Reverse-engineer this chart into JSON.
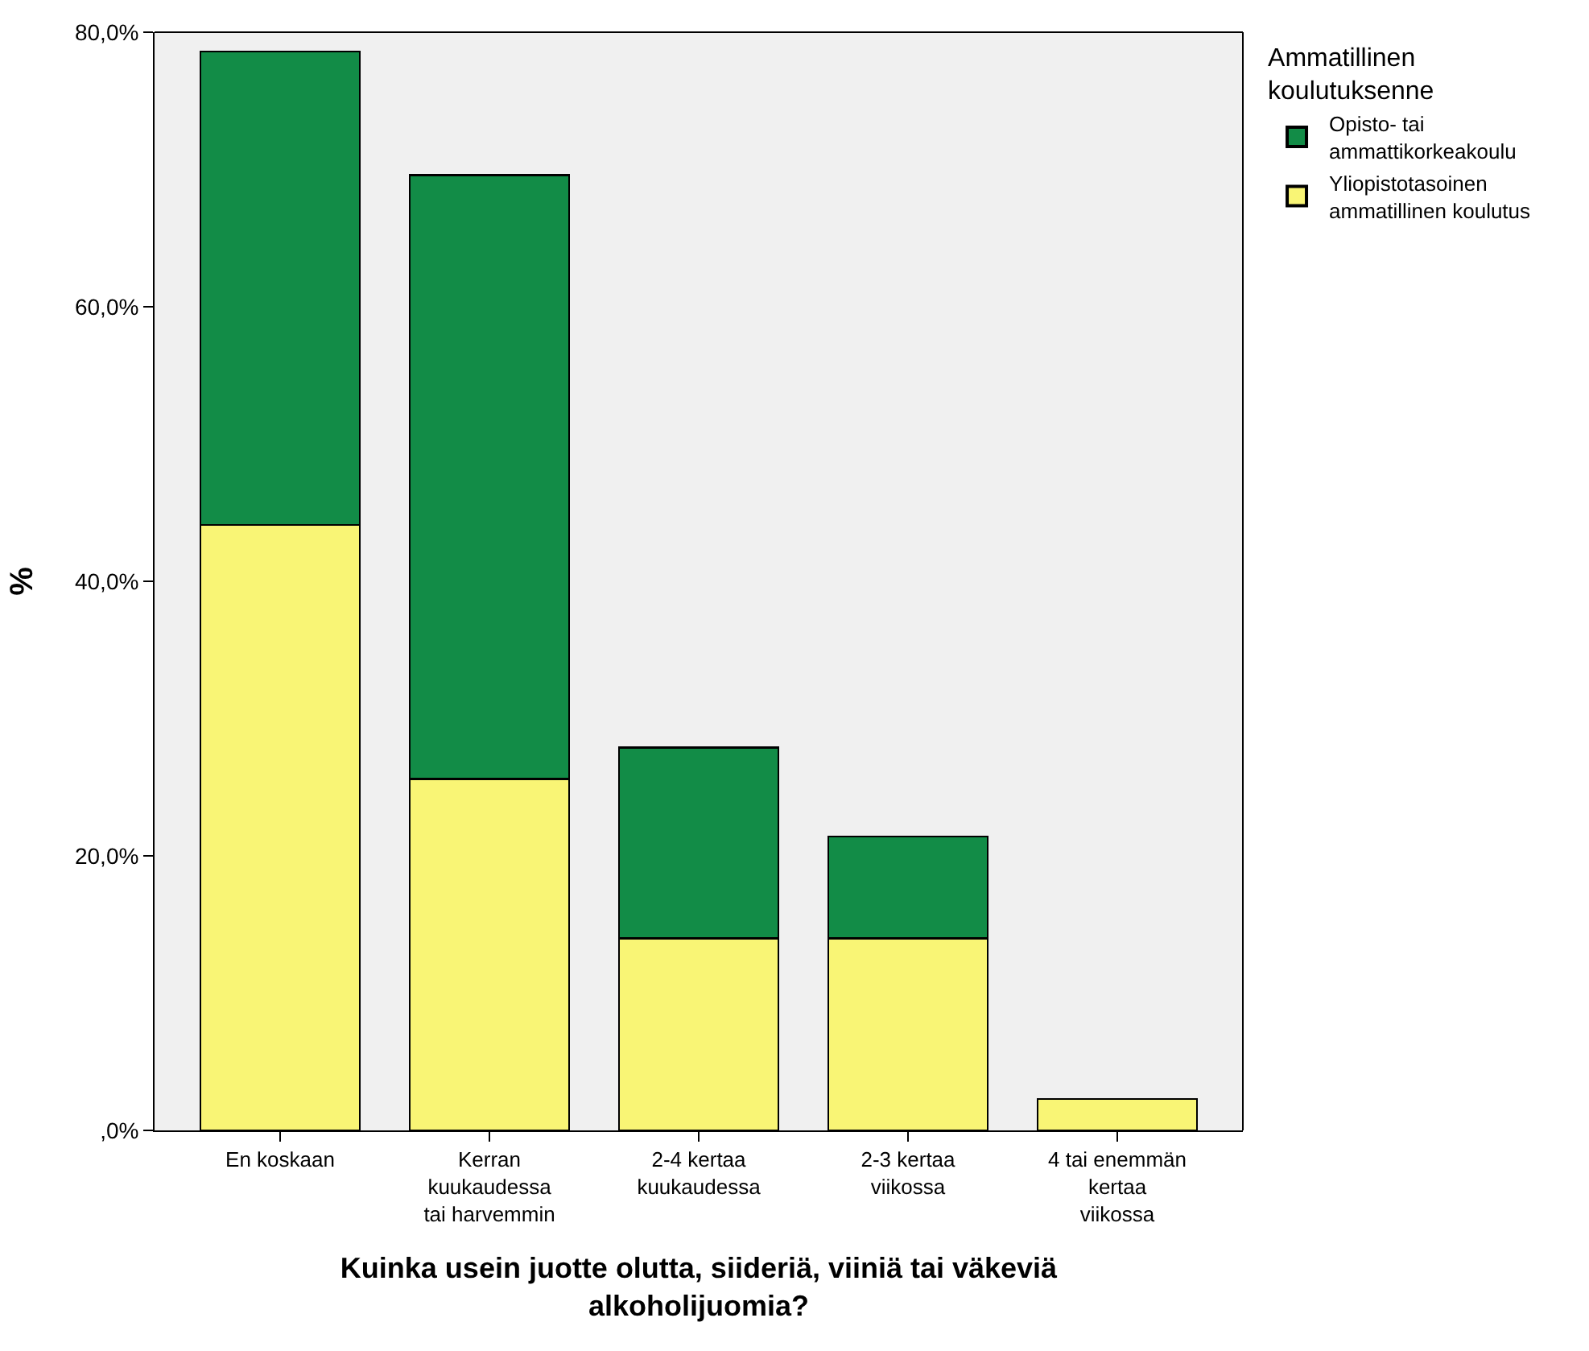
{
  "chart_data": {
    "type": "bar",
    "stacked": true,
    "xlabel": "Kuinka usein juotte olutta, siideriä, viiniä tai väkeviä\nalkoholijuomia?",
    "ylabel": "%",
    "legend_title": "Ammatillinen\nkoulutuksenne",
    "categories": [
      "En koskaan",
      "Kerran\nkuukaudessa\ntai harvemmin",
      "2-4 kertaa\nkuukaudessa",
      "2-3 kertaa\nviikossa",
      "4 tai enemmän\nkertaa\nviikossa"
    ],
    "series": [
      {
        "name": "Yliopistotasoinen\nammatillinen koulutus",
        "color": "#f9f575",
        "values": [
          44.1,
          25.6,
          14.0,
          14.0,
          2.3
        ]
      },
      {
        "name": "Opisto- tai\nammattikorkeakoulu",
        "color": "#128c47",
        "values": [
          34.5,
          44.0,
          13.9,
          7.4,
          null
        ]
      }
    ],
    "ylim": [
      0,
      80
    ],
    "yticks": [
      {
        "value": 0,
        "label": ",0%"
      },
      {
        "value": 20,
        "label": "20,0%"
      },
      {
        "value": 40,
        "label": "40,0%"
      },
      {
        "value": 60,
        "label": "60,0%"
      },
      {
        "value": 80,
        "label": "80,0%"
      }
    ],
    "grid": false,
    "legend": "top right"
  }
}
